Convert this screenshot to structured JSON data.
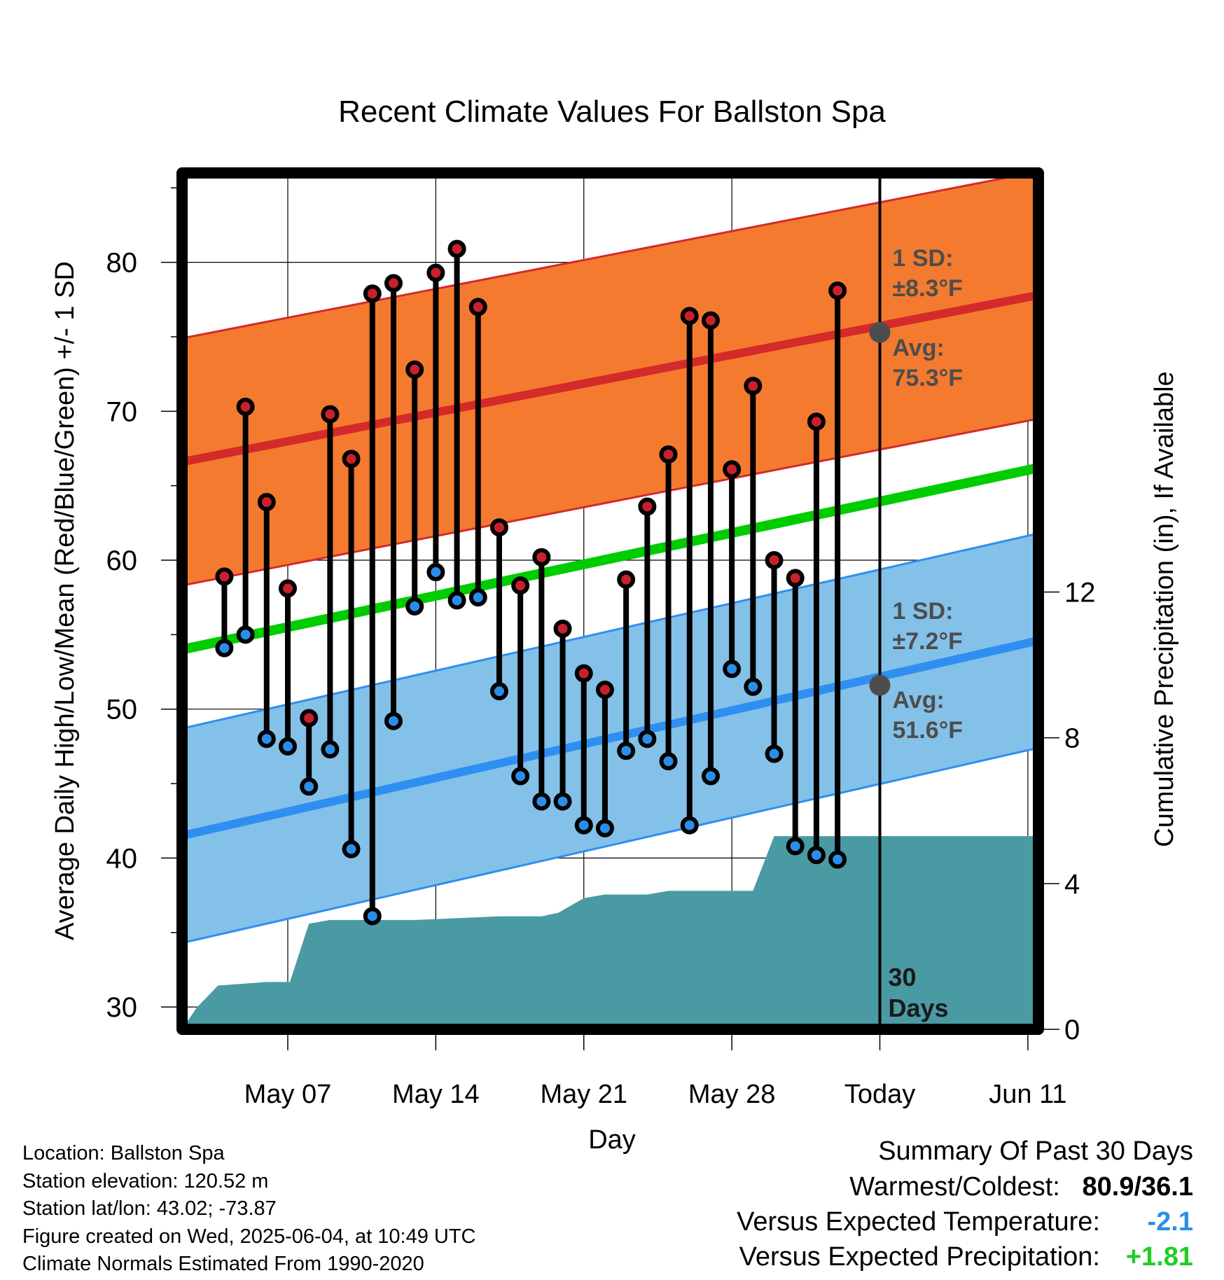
{
  "chart_data": {
    "type": "line",
    "title": "Recent Climate Values For Ballston Spa",
    "xlabel": "Day",
    "ylabel": "Average Daily High/Low/Mean (Red/Blue/Green) +/- 1 SD",
    "y2label": "Cumulative Precipitation (in), If Available",
    "x_ticks": [
      "May 07",
      "May 14",
      "May 21",
      "May 28",
      "Today",
      "Jun 11"
    ],
    "y_ticks": [
      "30",
      "40",
      "50",
      "60",
      "70",
      "80"
    ],
    "y2_ticks": [
      "0",
      "4",
      "8",
      "12"
    ],
    "xlim": [
      2.0,
      42.5
    ],
    "ylim": [
      28.5,
      86.0
    ],
    "y2lim": [
      0,
      23.5
    ],
    "today_x": 35,
    "grid": true,
    "highs": [
      [
        4,
        58.9
      ],
      [
        5,
        70.3
      ],
      [
        6,
        63.9
      ],
      [
        7,
        58.1
      ],
      [
        8,
        49.4
      ],
      [
        9,
        69.8
      ],
      [
        10,
        66.8
      ],
      [
        11,
        77.9
      ],
      [
        12,
        78.6
      ],
      [
        13,
        72.8
      ],
      [
        14,
        79.3
      ],
      [
        15,
        80.9
      ],
      [
        16,
        77.0
      ],
      [
        17,
        62.2
      ],
      [
        18,
        58.3
      ],
      [
        19,
        60.2
      ],
      [
        20,
        55.4
      ],
      [
        21,
        52.4
      ],
      [
        22,
        51.3
      ],
      [
        23,
        58.7
      ],
      [
        24,
        63.6
      ],
      [
        25,
        67.1
      ],
      [
        26,
        76.4
      ],
      [
        27,
        76.1
      ],
      [
        28,
        66.1
      ],
      [
        29,
        71.7
      ],
      [
        30,
        60.0
      ],
      [
        31,
        58.8
      ],
      [
        32,
        69.3
      ],
      [
        33,
        78.1
      ]
    ],
    "lows": [
      [
        4,
        54.1
      ],
      [
        5,
        55.0
      ],
      [
        6,
        48.0
      ],
      [
        7,
        47.5
      ],
      [
        8,
        44.8
      ],
      [
        9,
        47.3
      ],
      [
        10,
        40.6
      ],
      [
        11,
        36.1
      ],
      [
        12,
        49.2
      ],
      [
        13,
        56.9
      ],
      [
        14,
        59.2
      ],
      [
        15,
        57.3
      ],
      [
        16,
        57.5
      ],
      [
        17,
        51.2
      ],
      [
        18,
        45.5
      ],
      [
        19,
        43.8
      ],
      [
        20,
        43.8
      ],
      [
        21,
        42.2
      ],
      [
        22,
        42.0
      ],
      [
        23,
        47.2
      ],
      [
        24,
        48.0
      ],
      [
        25,
        46.5
      ],
      [
        26,
        42.2
      ],
      [
        27,
        45.5
      ],
      [
        28,
        52.7
      ],
      [
        29,
        51.5
      ],
      [
        30,
        47.0
      ],
      [
        31,
        40.8
      ],
      [
        32,
        40.2
      ],
      [
        33,
        39.9
      ]
    ],
    "normal_high": {
      "start": [
        2.0,
        66.6
      ],
      "end": [
        42.5,
        77.8
      ]
    },
    "normal_low": {
      "start": [
        2.0,
        41.5
      ],
      "end": [
        42.5,
        54.6
      ]
    },
    "normal_mean": {
      "start": [
        2.0,
        54.0
      ],
      "end": [
        42.5,
        66.2
      ]
    },
    "sd_high": 8.3,
    "sd_low": 7.2,
    "precip_cumulative": [
      [
        2.0,
        0.0
      ],
      [
        2.7,
        0.6
      ],
      [
        3.7,
        1.2
      ],
      [
        6.0,
        1.3
      ],
      [
        7.1,
        1.3
      ],
      [
        8.0,
        2.9
      ],
      [
        9.0,
        3.0
      ],
      [
        12.0,
        3.0
      ],
      [
        13.0,
        3.0
      ],
      [
        17.0,
        3.1
      ],
      [
        18.0,
        3.1
      ],
      [
        19.0,
        3.1
      ],
      [
        19.8,
        3.2
      ],
      [
        21.0,
        3.6
      ],
      [
        22.0,
        3.7
      ],
      [
        24.0,
        3.7
      ],
      [
        25.0,
        3.8
      ],
      [
        28.0,
        3.8
      ],
      [
        29.0,
        3.8
      ],
      [
        30.0,
        5.3
      ],
      [
        42.5,
        5.3
      ]
    ],
    "annotations": {
      "high_sd_line1": "1 SD:",
      "high_sd_line2": "±8.3°F",
      "high_avg_line1": "Avg:",
      "high_avg_line2": "75.3°F",
      "low_sd_line1": "1 SD:",
      "low_sd_line2": "±7.2°F",
      "low_avg_line1": "Avg:",
      "low_avg_line2": "51.6°F",
      "days_line1": "30",
      "days_line2": "Days"
    },
    "today_avg_high": 75.3,
    "today_avg_low": 51.6,
    "colors": {
      "high_band": "#f47a30",
      "high_line": "#d42a2a",
      "low_band": "#84c1e8",
      "low_line": "#2f8ff0",
      "mean_line": "#00cc00",
      "precip": "#4a9aa4",
      "marker_high": "#c8202c",
      "marker_low": "#2a8ee8",
      "annotation": "#4d4d4d"
    }
  },
  "info": {
    "location": "Location: Ballston Spa",
    "elevation": "Station elevation: 120.52 m",
    "latlon": "Station lat/lon: 43.02; -73.87",
    "created": "Figure created on Wed, 2025-06-04, at 10:49 UTC",
    "normals": "Climate Normals Estimated From 1990-2020"
  },
  "summary": {
    "heading": "Summary Of Past 30 Days",
    "warm_cold_label": "Warmest/Coldest:",
    "warm_cold_value": "80.9/36.1",
    "temp_label": "Versus Expected Temperature:",
    "temp_value": "-2.1",
    "temp_color": "#2a8ee8",
    "precip_label": "Versus Expected Precipitation:",
    "precip_value": "+1.81",
    "precip_color": "#22cc22"
  }
}
